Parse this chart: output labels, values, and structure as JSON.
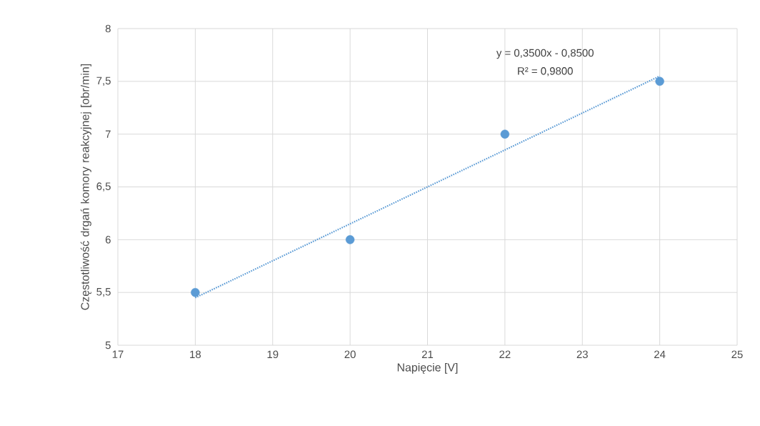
{
  "chart_data": {
    "type": "scatter",
    "xlabel": "Napięcie [V]",
    "ylabel": "Częstotliwość drgań komory reakcyjnej [obr/min]",
    "xlim": [
      17,
      25
    ],
    "xticks": [
      17,
      18,
      19,
      20,
      21,
      22,
      23,
      24,
      25
    ],
    "ylim": [
      5,
      8
    ],
    "yticks": [
      5,
      {
        "value": 5.5,
        "label": "5,5"
      },
      6,
      {
        "value": 6.5,
        "label": "6,5"
      },
      7,
      {
        "value": 7.5,
        "label": "7,5"
      },
      8
    ],
    "grid": true,
    "series": [
      {
        "color": "#5b9bd5",
        "marker": "circle",
        "x": [
          18,
          20,
          22,
          24
        ],
        "values": [
          5.5,
          6,
          7,
          7.5
        ]
      },
      {
        "type": "line",
        "color": "#5b9bd5",
        "marker": "none",
        "line_style": "dotted",
        "x": [
          18,
          24
        ],
        "values": [
          5.45,
          7.55
        ]
      }
    ],
    "annotations": [
      "y = 0,3500x - 0,8500",
      "R² = 0,9800"
    ]
  }
}
